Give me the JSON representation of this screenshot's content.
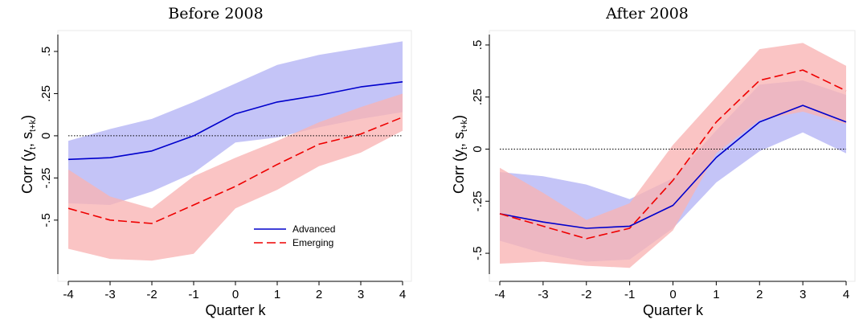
{
  "chart_data": [
    {
      "type": "line",
      "title": "Before 2008",
      "xlabel": "Quarter k",
      "ylabel": "Corr (y",
      "ylabel_sub1": "t",
      "ylabel_mid": ", s",
      "ylabel_sub2": "t+k",
      "ylabel_end": ")",
      "x": [
        -4,
        -3,
        -2,
        -1,
        0,
        1,
        2,
        3,
        4
      ],
      "x_tick_labels": [
        "-4",
        "-3",
        "-2",
        "-1",
        "0",
        "1",
        "2",
        "3",
        "4"
      ],
      "y_ticks": [
        -0.5,
        -0.25,
        0,
        0.25,
        0.5
      ],
      "y_tick_labels": [
        "-.5",
        "-.25",
        "0",
        ".25",
        ".5"
      ],
      "xlim": [
        -4,
        4
      ],
      "ylim": [
        -0.82,
        0.6
      ],
      "zero_line": true,
      "grid": false,
      "legend_position": "bottom-right inside plot",
      "series": [
        {
          "name": "Advanced",
          "color": "#0000cc",
          "band_color": "#b4b4f5",
          "dash": "solid",
          "values": [
            -0.14,
            -0.13,
            -0.09,
            0.0,
            0.13,
            0.2,
            0.24,
            0.29,
            0.32
          ],
          "lower": [
            -0.4,
            -0.41,
            -0.33,
            -0.22,
            -0.04,
            -0.01,
            0.05,
            0.1,
            0.14
          ],
          "upper": [
            -0.03,
            0.04,
            0.1,
            0.2,
            0.31,
            0.42,
            0.48,
            0.52,
            0.56
          ]
        },
        {
          "name": "Emerging",
          "color": "#ee0000",
          "band_color": "#f9b3b3",
          "dash": "dashed",
          "values": [
            -0.43,
            -0.5,
            -0.52,
            -0.41,
            -0.3,
            -0.17,
            -0.05,
            0.01,
            0.11
          ],
          "lower": [
            -0.67,
            -0.73,
            -0.74,
            -0.7,
            -0.43,
            -0.32,
            -0.18,
            -0.1,
            0.03
          ],
          "upper": [
            -0.2,
            -0.36,
            -0.43,
            -0.24,
            -0.13,
            -0.03,
            0.08,
            0.17,
            0.25
          ]
        }
      ]
    },
    {
      "type": "line",
      "title": "After 2008",
      "xlabel": "Quarter k",
      "ylabel": "Corr (y",
      "ylabel_sub1": "t",
      "ylabel_mid": ", s",
      "ylabel_sub2": "t+k",
      "ylabel_end": ")",
      "x": [
        -4,
        -3,
        -2,
        -1,
        0,
        1,
        2,
        3,
        4
      ],
      "x_tick_labels": [
        "-4",
        "-3",
        "-2",
        "-1",
        "0",
        "1",
        "2",
        "3",
        "4"
      ],
      "y_ticks": [
        -0.5,
        -0.25,
        0,
        0.25,
        0.5
      ],
      "y_tick_labels": [
        "-.5",
        "-.25",
        "0",
        ".25",
        ".5"
      ],
      "xlim": [
        -4,
        4
      ],
      "ylim": [
        -0.6,
        0.55
      ],
      "zero_line": true,
      "grid": false,
      "series": [
        {
          "name": "Advanced",
          "color": "#0000cc",
          "band_color": "#b4b4f5",
          "dash": "solid",
          "values": [
            -0.31,
            -0.35,
            -0.38,
            -0.37,
            -0.27,
            -0.04,
            0.13,
            0.21,
            0.13
          ],
          "lower": [
            -0.44,
            -0.5,
            -0.54,
            -0.53,
            -0.38,
            -0.16,
            -0.01,
            0.08,
            -0.02
          ],
          "upper": [
            -0.11,
            -0.13,
            -0.17,
            -0.24,
            -0.14,
            0.09,
            0.31,
            0.33,
            0.26
          ]
        },
        {
          "name": "Emerging",
          "color": "#ee0000",
          "band_color": "#f9b3b3",
          "dash": "dashed",
          "values": [
            -0.31,
            -0.37,
            -0.43,
            -0.38,
            -0.15,
            0.13,
            0.33,
            0.38,
            0.28
          ],
          "lower": [
            -0.55,
            -0.54,
            -0.56,
            -0.57,
            -0.39,
            -0.02,
            0.14,
            0.18,
            0.12
          ],
          "upper": [
            -0.09,
            -0.21,
            -0.34,
            -0.26,
            0.02,
            0.25,
            0.48,
            0.51,
            0.4
          ]
        }
      ]
    }
  ]
}
